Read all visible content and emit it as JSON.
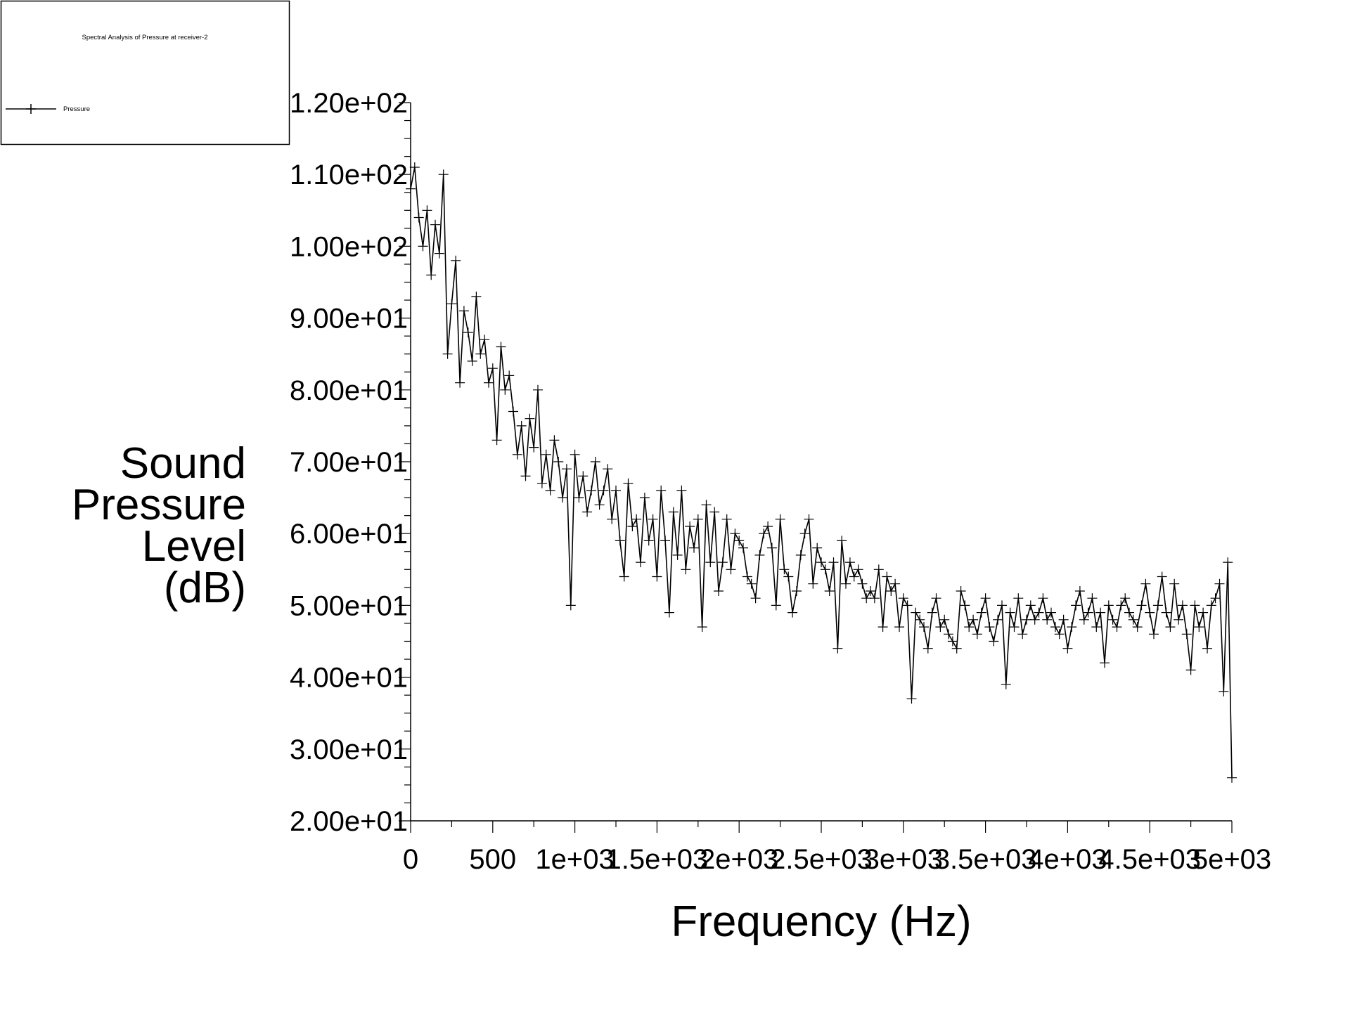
{
  "legend": {
    "title": "Spectral Analysis of Pressure at receiver-2",
    "entries": [
      {
        "label": "Pressure",
        "marker": "plus",
        "color": "#000000"
      }
    ]
  },
  "chart_data": {
    "type": "line",
    "title": "Spectral Analysis of Pressure at receiver-2",
    "xlabel": "Frequency (Hz)",
    "ylabel_lines": [
      "Sound",
      "Pressure",
      "Level",
      "(dB)"
    ],
    "xlim": [
      0,
      5000
    ],
    "ylim": [
      20,
      120
    ],
    "x_ticks": [
      0,
      500,
      1000,
      1500,
      2000,
      2500,
      3000,
      3500,
      4000,
      4500,
      5000
    ],
    "x_tick_labels": [
      "0",
      "500",
      "1e+03",
      "1.5e+03",
      "2e+03",
      "2.5e+03",
      "3e+03",
      "3.5e+03",
      "4e+03",
      "4.5e+03",
      "5e+03"
    ],
    "y_ticks": [
      20,
      30,
      40,
      50,
      60,
      70,
      80,
      90,
      100,
      110,
      120
    ],
    "y_tick_labels": [
      "2.00e+01",
      "3.00e+01",
      "4.00e+01",
      "5.00e+01",
      "6.00e+01",
      "7.00e+01",
      "8.00e+01",
      "9.00e+01",
      "1.00e+02",
      "1.10e+02",
      "1.20e+02"
    ],
    "grid": false,
    "legend_position": "top-left",
    "series": [
      {
        "name": "Pressure",
        "color": "#000000",
        "marker": "plus",
        "x": [
          0,
          25,
          50,
          75,
          100,
          125,
          150,
          175,
          200,
          225,
          250,
          275,
          300,
          325,
          350,
          375,
          400,
          425,
          450,
          475,
          500,
          525,
          550,
          575,
          600,
          625,
          650,
          675,
          700,
          725,
          750,
          775,
          800,
          825,
          850,
          875,
          900,
          925,
          950,
          975,
          1000,
          1025,
          1050,
          1075,
          1100,
          1125,
          1150,
          1175,
          1200,
          1225,
          1250,
          1275,
          1300,
          1325,
          1350,
          1375,
          1400,
          1425,
          1450,
          1475,
          1500,
          1525,
          1550,
          1575,
          1600,
          1625,
          1650,
          1675,
          1700,
          1725,
          1750,
          1775,
          1800,
          1825,
          1850,
          1875,
          1900,
          1925,
          1950,
          1975,
          2000,
          2025,
          2050,
          2075,
          2100,
          2125,
          2150,
          2175,
          2200,
          2225,
          2250,
          2275,
          2300,
          2325,
          2350,
          2375,
          2400,
          2425,
          2450,
          2475,
          2500,
          2525,
          2550,
          2575,
          2600,
          2625,
          2650,
          2675,
          2700,
          2725,
          2750,
          2775,
          2800,
          2825,
          2850,
          2875,
          2900,
          2925,
          2950,
          2975,
          3000,
          3025,
          3050,
          3075,
          3100,
          3125,
          3150,
          3175,
          3200,
          3225,
          3250,
          3275,
          3300,
          3325,
          3350,
          3375,
          3400,
          3425,
          3450,
          3475,
          3500,
          3525,
          3550,
          3575,
          3600,
          3625,
          3650,
          3675,
          3700,
          3725,
          3750,
          3775,
          3800,
          3825,
          3850,
          3875,
          3900,
          3925,
          3950,
          3975,
          4000,
          4025,
          4050,
          4075,
          4100,
          4125,
          4150,
          4175,
          4200,
          4225,
          4250,
          4275,
          4300,
          4325,
          4350,
          4375,
          4400,
          4425,
          4450,
          4475,
          4500,
          4525,
          4550,
          4575,
          4600,
          4625,
          4650,
          4675,
          4700,
          4725,
          4750,
          4775,
          4800,
          4825,
          4850,
          4875,
          4900,
          4925,
          4950,
          4975,
          5000
        ],
        "y": [
          108,
          111,
          104,
          100,
          105,
          96,
          103,
          99,
          110,
          85,
          92,
          98,
          81,
          91,
          88,
          84,
          93,
          85,
          87,
          81,
          83,
          73,
          86,
          80,
          82,
          77,
          71,
          75,
          68,
          76,
          72,
          80,
          67,
          71,
          66,
          73,
          70,
          65,
          69,
          50,
          71,
          65,
          68,
          63,
          66,
          70,
          64,
          66,
          69,
          62,
          66,
          59,
          54,
          67,
          61,
          62,
          56,
          65,
          59,
          62,
          54,
          66,
          59,
          49,
          63,
          57,
          66,
          55,
          61,
          58,
          62,
          47,
          64,
          56,
          63,
          52,
          56,
          62,
          55,
          60,
          59,
          58,
          54,
          53,
          51,
          57,
          60,
          61,
          58,
          50,
          62,
          55,
          54,
          49,
          52,
          57,
          60,
          62,
          53,
          58,
          56,
          55,
          52,
          56,
          44,
          59,
          53,
          56,
          54,
          55,
          53,
          51,
          52,
          51,
          55,
          47,
          54,
          52,
          53,
          47,
          51,
          50,
          37,
          49,
          48,
          47,
          44,
          49,
          51,
          47,
          48,
          46,
          45,
          44,
          52,
          50,
          47,
          48,
          46,
          49,
          51,
          47,
          45,
          48,
          50,
          39,
          49,
          47,
          51,
          46,
          48,
          50,
          48,
          49,
          51,
          48,
          49,
          47,
          46,
          48,
          44,
          47,
          50,
          52,
          48,
          49,
          51,
          47,
          49,
          42,
          50,
          48,
          47,
          50,
          51,
          49,
          48,
          47,
          50,
          53,
          49,
          46,
          50,
          54,
          49,
          47,
          53,
          48,
          50,
          46,
          41,
          50,
          47,
          49,
          44,
          50,
          51,
          53,
          38,
          56,
          26
        ]
      }
    ]
  }
}
